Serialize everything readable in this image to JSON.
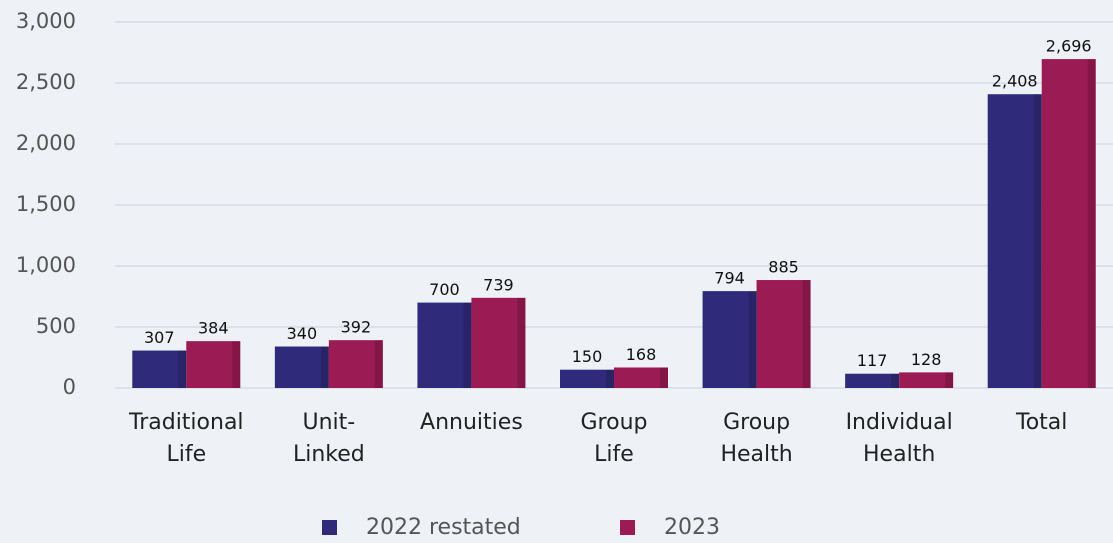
{
  "chart_data": {
    "type": "bar",
    "categories": [
      [
        "Traditional",
        "Life"
      ],
      [
        "Unit-",
        "Linked"
      ],
      [
        "Annuities"
      ],
      [
        "Group",
        "Life"
      ],
      [
        "Group",
        "Health"
      ],
      [
        "Individual",
        "Health"
      ],
      [
        "Total"
      ]
    ],
    "series": [
      {
        "name": "2022 restated",
        "color": "#2f2b7a",
        "values": [
          307,
          340,
          700,
          150,
          794,
          117,
          2408
        ],
        "value_labels": [
          "307",
          "340",
          "700",
          "150",
          "794",
          "117",
          "2,408"
        ]
      },
      {
        "name": "2023",
        "color": "#9b1b54",
        "values": [
          384,
          392,
          739,
          168,
          885,
          128,
          2696
        ],
        "value_labels": [
          "384",
          "392",
          "739",
          "168",
          "885",
          "128",
          "2,696"
        ]
      }
    ],
    "ylim": [
      0,
      3000
    ],
    "yticks": [
      0,
      500,
      {
        "value": 1000,
        "label": "1,000"
      },
      {
        "value": 1500,
        "label": "1,500"
      },
      {
        "value": 2000,
        "label": "2,000"
      },
      {
        "value": 2500,
        "label": "2,500"
      },
      {
        "value": 3000,
        "label": "3,000"
      }
    ],
    "grid": true,
    "legend": "bottom"
  }
}
